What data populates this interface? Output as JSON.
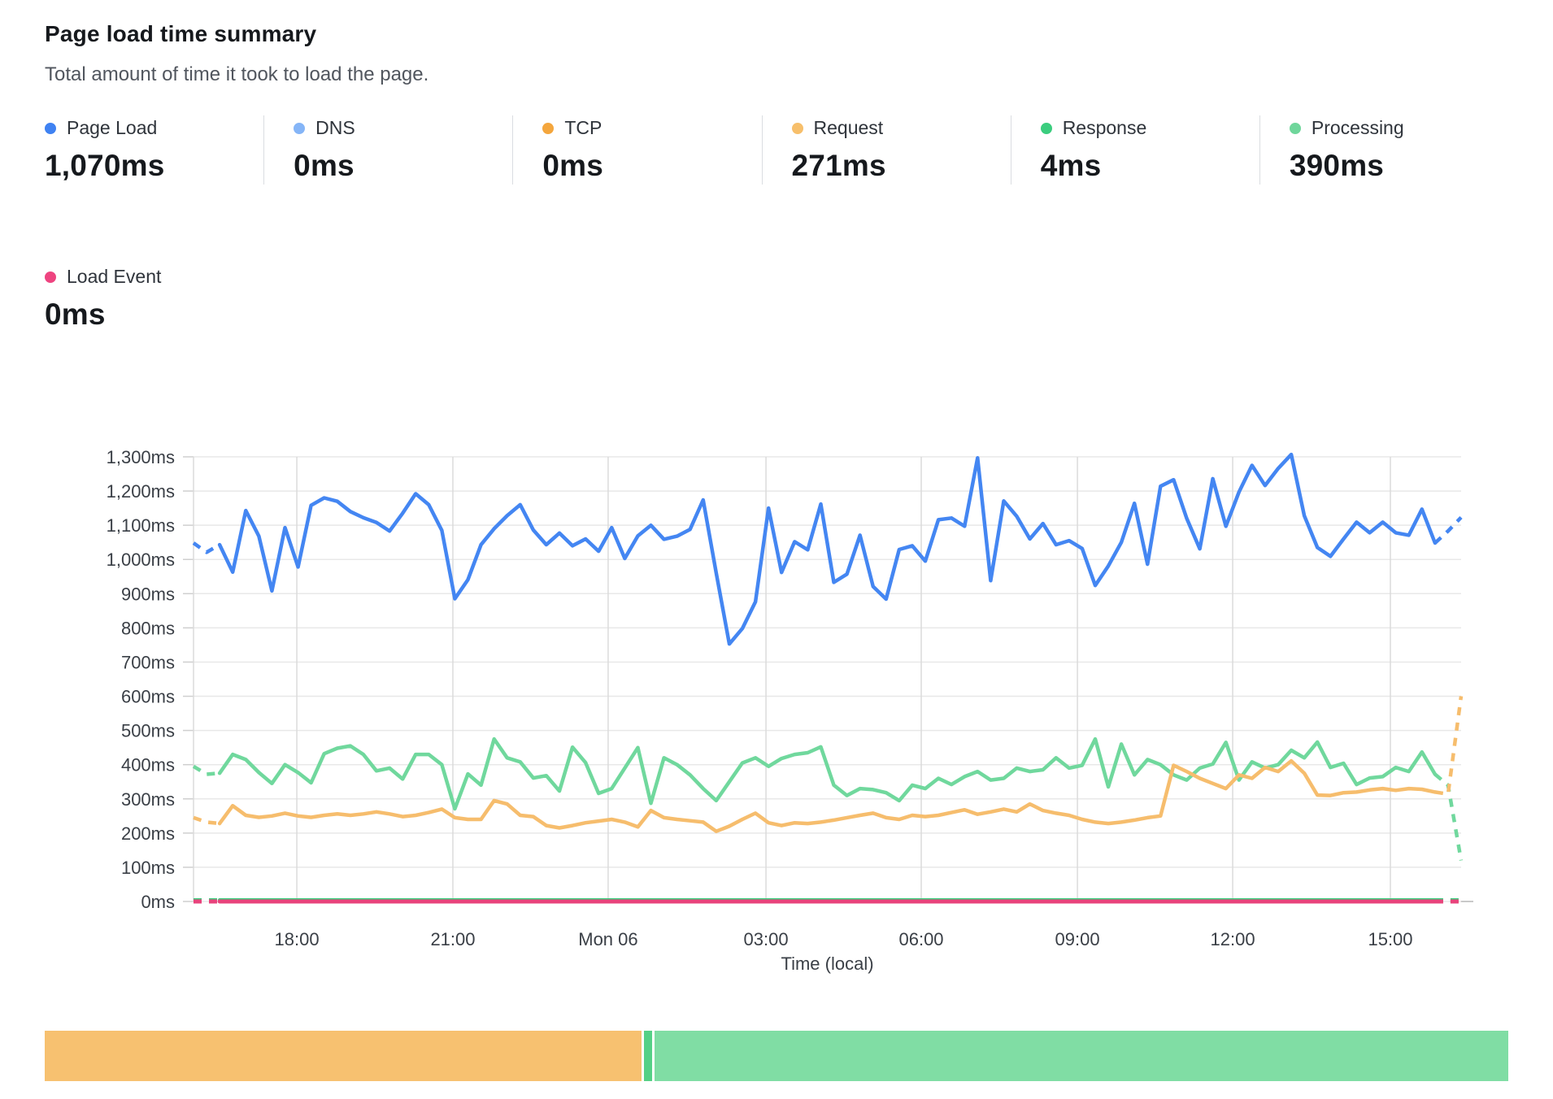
{
  "header": {
    "title": "Page load time summary",
    "subtitle": "Total amount of time it took to load the page."
  },
  "metrics": [
    {
      "label": "Page Load",
      "value": "1,070ms",
      "color": "#3f82f2"
    },
    {
      "label": "DNS",
      "value": "0ms",
      "color": "#85b5f7"
    },
    {
      "label": "TCP",
      "value": "0ms",
      "color": "#f4a63d"
    },
    {
      "label": "Request",
      "value": "271ms",
      "color": "#f7bf6b"
    },
    {
      "label": "Response",
      "value": "4ms",
      "color": "#3bcd7e"
    },
    {
      "label": "Processing",
      "value": "390ms",
      "color": "#6fd69b"
    }
  ],
  "metrics_row2": [
    {
      "label": "Load Event",
      "value": "0ms",
      "color": "#ee4480"
    }
  ],
  "chart_data": {
    "type": "line",
    "title": "Page load time summary",
    "xlabel": "Time (local)",
    "ylabel": "",
    "ylim": [
      0,
      1300
    ],
    "grid": true,
    "legend_position": "top-cards",
    "y_ticks": [
      {
        "v": 0,
        "label": "0ms"
      },
      {
        "v": 100,
        "label": "100ms"
      },
      {
        "v": 200,
        "label": "200ms"
      },
      {
        "v": 300,
        "label": "300ms"
      },
      {
        "v": 400,
        "label": "400ms"
      },
      {
        "v": 500,
        "label": "500ms"
      },
      {
        "v": 600,
        "label": "600ms"
      },
      {
        "v": 700,
        "label": "700ms"
      },
      {
        "v": 800,
        "label": "800ms"
      },
      {
        "v": 900,
        "label": "900ms"
      },
      {
        "v": 1000,
        "label": "1,000ms"
      },
      {
        "v": 1100,
        "label": "1,100ms"
      },
      {
        "v": 1200,
        "label": "1,200ms"
      },
      {
        "v": 1300,
        "label": "1,300ms"
      }
    ],
    "x_ticks": [
      {
        "f": 0.0815,
        "label": "18:00"
      },
      {
        "f": 0.2046,
        "label": "21:00"
      },
      {
        "f": 0.3271,
        "label": "Mon 06"
      },
      {
        "f": 0.4516,
        "label": "03:00"
      },
      {
        "f": 0.5741,
        "label": "06:00"
      },
      {
        "f": 0.6973,
        "label": "09:00"
      },
      {
        "f": 0.8198,
        "label": "12:00"
      },
      {
        "f": 0.9442,
        "label": "15:00"
      }
    ],
    "series": [
      {
        "name": "DNS",
        "color": "#85b5f7",
        "width": 3,
        "const": 0,
        "count": 98
      },
      {
        "name": "TCP",
        "color": "#f4a63d",
        "width": 3,
        "const": 0,
        "count": 98
      },
      {
        "name": "Processing",
        "color": "#70d89d",
        "width": 4.5,
        "values": [
          395,
          372,
          375,
          430,
          415,
          377,
          345,
          400,
          377,
          347,
          432,
          448,
          455,
          430,
          382,
          390,
          358,
          430,
          430,
          400,
          271,
          373,
          340,
          475,
          420,
          408,
          361,
          368,
          323,
          451,
          406,
          316,
          330,
          390,
          450,
          287,
          420,
          400,
          370,
          330,
          295,
          350,
          405,
          420,
          395,
          418,
          430,
          435,
          452,
          340,
          310,
          330,
          327,
          318,
          295,
          340,
          330,
          360,
          342,
          365,
          380,
          355,
          360,
          390,
          380,
          385,
          420,
          390,
          398,
          475,
          335,
          460,
          370,
          415,
          400,
          370,
          355,
          390,
          402,
          465,
          355,
          408,
          390,
          400,
          442,
          420,
          466,
          392,
          404,
          342,
          361,
          365,
          392,
          380,
          437,
          372,
          340,
          120
        ]
      },
      {
        "name": "Request",
        "color": "#f6bd6d",
        "width": 4.5,
        "values": [
          245,
          232,
          228,
          280,
          252,
          246,
          250,
          258,
          250,
          246,
          252,
          256,
          252,
          256,
          262,
          256,
          248,
          252,
          260,
          270,
          245,
          240,
          240,
          295,
          285,
          252,
          248,
          222,
          215,
          222,
          230,
          235,
          240,
          232,
          218,
          266,
          245,
          240,
          236,
          232,
          205,
          220,
          240,
          258,
          230,
          222,
          230,
          228,
          232,
          238,
          245,
          252,
          258,
          245,
          240,
          252,
          248,
          252,
          260,
          268,
          255,
          262,
          270,
          262,
          285,
          266,
          258,
          252,
          240,
          232,
          228,
          232,
          238,
          245,
          250,
          398,
          380,
          360,
          345,
          330,
          370,
          360,
          392,
          380,
          411,
          375,
          311,
          310,
          318,
          320,
          326,
          330,
          325,
          330,
          328,
          320,
          314,
          600
        ]
      },
      {
        "name": "Response",
        "color": "#3bcd7e",
        "width": 4.5,
        "const": 4,
        "count": 98
      },
      {
        "name": "Load Event",
        "color": "#e8437c",
        "width": 5,
        "const": 0,
        "count": 98
      },
      {
        "name": "Page Load",
        "color": "#4486f2",
        "width": 4.5,
        "values": [
          1048,
          1021,
          1043,
          963,
          1143,
          1068,
          908,
          1093,
          978,
          1158,
          1180,
          1170,
          1140,
          1122,
          1108,
          1083,
          1135,
          1192,
          1160,
          1085,
          885,
          941,
          1043,
          1090,
          1128,
          1160,
          1086,
          1043,
          1077,
          1040,
          1060,
          1024,
          1093,
          1003,
          1069,
          1100,
          1059,
          1068,
          1088,
          1174,
          960,
          753,
          798,
          876,
          1150,
          962,
          1052,
          1028,
          1162,
          933,
          957,
          1071,
          921,
          884,
          1029,
          1040,
          995,
          1116,
          1121,
          1097,
          1297,
          938,
          1171,
          1126,
          1060,
          1105,
          1043,
          1055,
          1032,
          924,
          981,
          1050,
          1164,
          986,
          1214,
          1233,
          1120,
          1031,
          1236,
          1097,
          1197,
          1275,
          1216,
          1266,
          1307,
          1128,
          1035,
          1009,
          1060,
          1109,
          1078,
          1109,
          1078,
          1071,
          1147,
          1048,
          1083,
          1123
        ]
      }
    ]
  },
  "footer_bar": {
    "segments": [
      {
        "name": "request-phase",
        "color": "#f7c170",
        "width_pct": 40.8
      },
      {
        "name": "response-sliver",
        "color": "#55d086",
        "width_pct": 0.55
      },
      {
        "name": "processing-phase",
        "color": "#80dda4",
        "width_pct": 58.0
      }
    ]
  }
}
